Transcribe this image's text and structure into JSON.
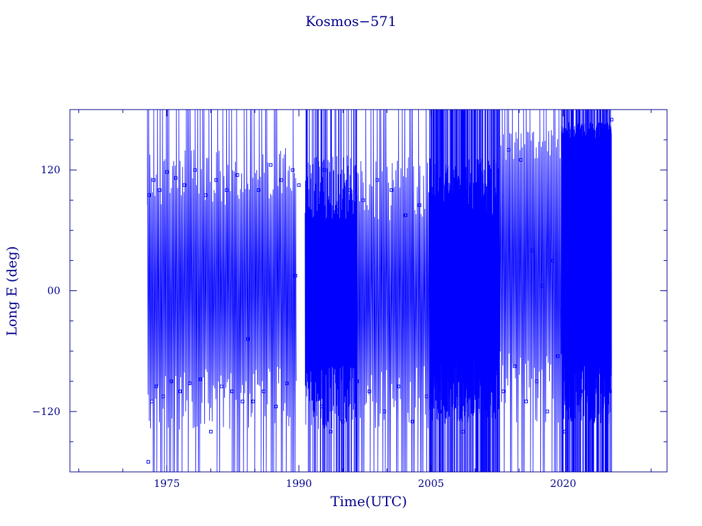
{
  "chart_data": {
    "type": "line",
    "title": "Kosmos−571",
    "xlabel": "Time(UTC)",
    "ylabel": "Long E (deg)",
    "xlim": [
      1964.0,
      2031.8
    ],
    "ylim": [
      -180,
      180
    ],
    "x_ticks": [
      {
        "value": 1975,
        "label": "1975"
      },
      {
        "value": 1990,
        "label": "1990"
      },
      {
        "value": 2005,
        "label": "2005"
      },
      {
        "value": 2020,
        "label": "2020"
      }
    ],
    "y_ticks": [
      {
        "value": 120,
        "label": "120"
      },
      {
        "value": 0,
        "label": "00"
      },
      {
        "value": -120,
        "label": "−120"
      }
    ],
    "grid": false,
    "series": [
      {
        "color": "#0000ff",
        "marker": "square",
        "bands": [
          {
            "x": [
              1972.8,
              1989.7
            ],
            "upper": [
              85,
              180
            ],
            "lower": [
              -180,
              -75
            ],
            "density": "medium"
          },
          {
            "x": [
              1990.7,
              1996.6
            ],
            "upper": [
              70,
              180
            ],
            "lower": [
              -180,
              -75
            ],
            "density": "high"
          },
          {
            "x": [
              1996.6,
              2004.8
            ],
            "upper": [
              70,
              180
            ],
            "lower": [
              -180,
              -75
            ],
            "density": "medium"
          },
          {
            "x": [
              2004.8,
              2012.8
            ],
            "upper": [
              60,
              180
            ],
            "lower": [
              -180,
              -60
            ],
            "density": "very-high"
          },
          {
            "x": [
              2012.8,
              2019.8
            ],
            "upper": [
              130,
              180
            ],
            "lower": [
              -180,
              -60
            ],
            "density": "medium"
          },
          {
            "x": [
              2019.8,
              2025.5
            ],
            "upper": [
              150,
              180
            ],
            "lower": [
              -180,
              -60
            ],
            "density": "very-high"
          }
        ],
        "points": [
          [
            1972.9,
            -170
          ],
          [
            1973.0,
            95
          ],
          [
            1973.3,
            -110
          ],
          [
            1973.5,
            110
          ],
          [
            1973.8,
            -95
          ],
          [
            1974.2,
            100
          ],
          [
            1974.6,
            -105
          ],
          [
            1975.0,
            118
          ],
          [
            1975.5,
            -90
          ],
          [
            1976.0,
            112
          ],
          [
            1976.5,
            -100
          ],
          [
            1977.0,
            105
          ],
          [
            1977.6,
            -92
          ],
          [
            1978.2,
            120
          ],
          [
            1978.8,
            -88
          ],
          [
            1979.4,
            95
          ],
          [
            1980.0,
            -140
          ],
          [
            1980.6,
            110
          ],
          [
            1981.2,
            -95
          ],
          [
            1981.8,
            100
          ],
          [
            1982.4,
            -100
          ],
          [
            1983.0,
            115
          ],
          [
            1983.6,
            -110
          ],
          [
            1984.2,
            -48
          ],
          [
            1984.8,
            -110
          ],
          [
            1985.4,
            100
          ],
          [
            1986.0,
            -100
          ],
          [
            1986.8,
            125
          ],
          [
            1987.4,
            -115
          ],
          [
            1988.0,
            110
          ],
          [
            1988.6,
            -92
          ],
          [
            1989.3,
            120
          ],
          [
            1989.6,
            15
          ],
          [
            1990.0,
            105
          ],
          [
            1992.3,
            90
          ],
          [
            1992.6,
            -115
          ],
          [
            1992.9,
            120
          ],
          [
            1993.3,
            8
          ],
          [
            1993.6,
            -140
          ],
          [
            1994.3,
            80
          ],
          [
            1995.0,
            -130
          ],
          [
            1995.8,
            100
          ],
          [
            1996.6,
            -90
          ],
          [
            1997.3,
            90
          ],
          [
            1998.0,
            -100
          ],
          [
            1998.9,
            110
          ],
          [
            1999.7,
            -120
          ],
          [
            2000.5,
            100
          ],
          [
            2001.3,
            -95
          ],
          [
            2002.1,
            75
          ],
          [
            2002.9,
            -130
          ],
          [
            2003.7,
            85
          ],
          [
            2004.5,
            -105
          ],
          [
            2005.0,
            70
          ],
          [
            2005.5,
            -50
          ],
          [
            2006.0,
            -120
          ],
          [
            2006.6,
            60
          ],
          [
            2007.2,
            -90
          ],
          [
            2007.9,
            30
          ],
          [
            2008.6,
            -140
          ],
          [
            2009.3,
            90
          ],
          [
            2010.0,
            -80
          ],
          [
            2010.7,
            45
          ],
          [
            2011.4,
            -110
          ],
          [
            2012.1,
            -65
          ],
          [
            2012.6,
            -20
          ],
          [
            2013.2,
            -100
          ],
          [
            2013.8,
            140
          ],
          [
            2014.5,
            -75
          ],
          [
            2015.2,
            130
          ],
          [
            2015.8,
            -110
          ],
          [
            2016.5,
            40
          ],
          [
            2017.0,
            -90
          ],
          [
            2017.6,
            5
          ],
          [
            2018.2,
            -120
          ],
          [
            2018.8,
            30
          ],
          [
            2019.4,
            -65
          ],
          [
            2019.9,
            -20
          ],
          [
            2020.2,
            -140
          ],
          [
            2020.5,
            150
          ],
          [
            2021.0,
            -80
          ],
          [
            2021.5,
            85
          ],
          [
            2022.0,
            -100
          ],
          [
            2022.6,
            10
          ],
          [
            2023.2,
            -120
          ],
          [
            2023.8,
            -45
          ],
          [
            2024.3,
            165
          ],
          [
            2024.8,
            -70
          ],
          [
            2025.3,
            -100
          ],
          [
            2025.5,
            170
          ]
        ]
      }
    ]
  }
}
